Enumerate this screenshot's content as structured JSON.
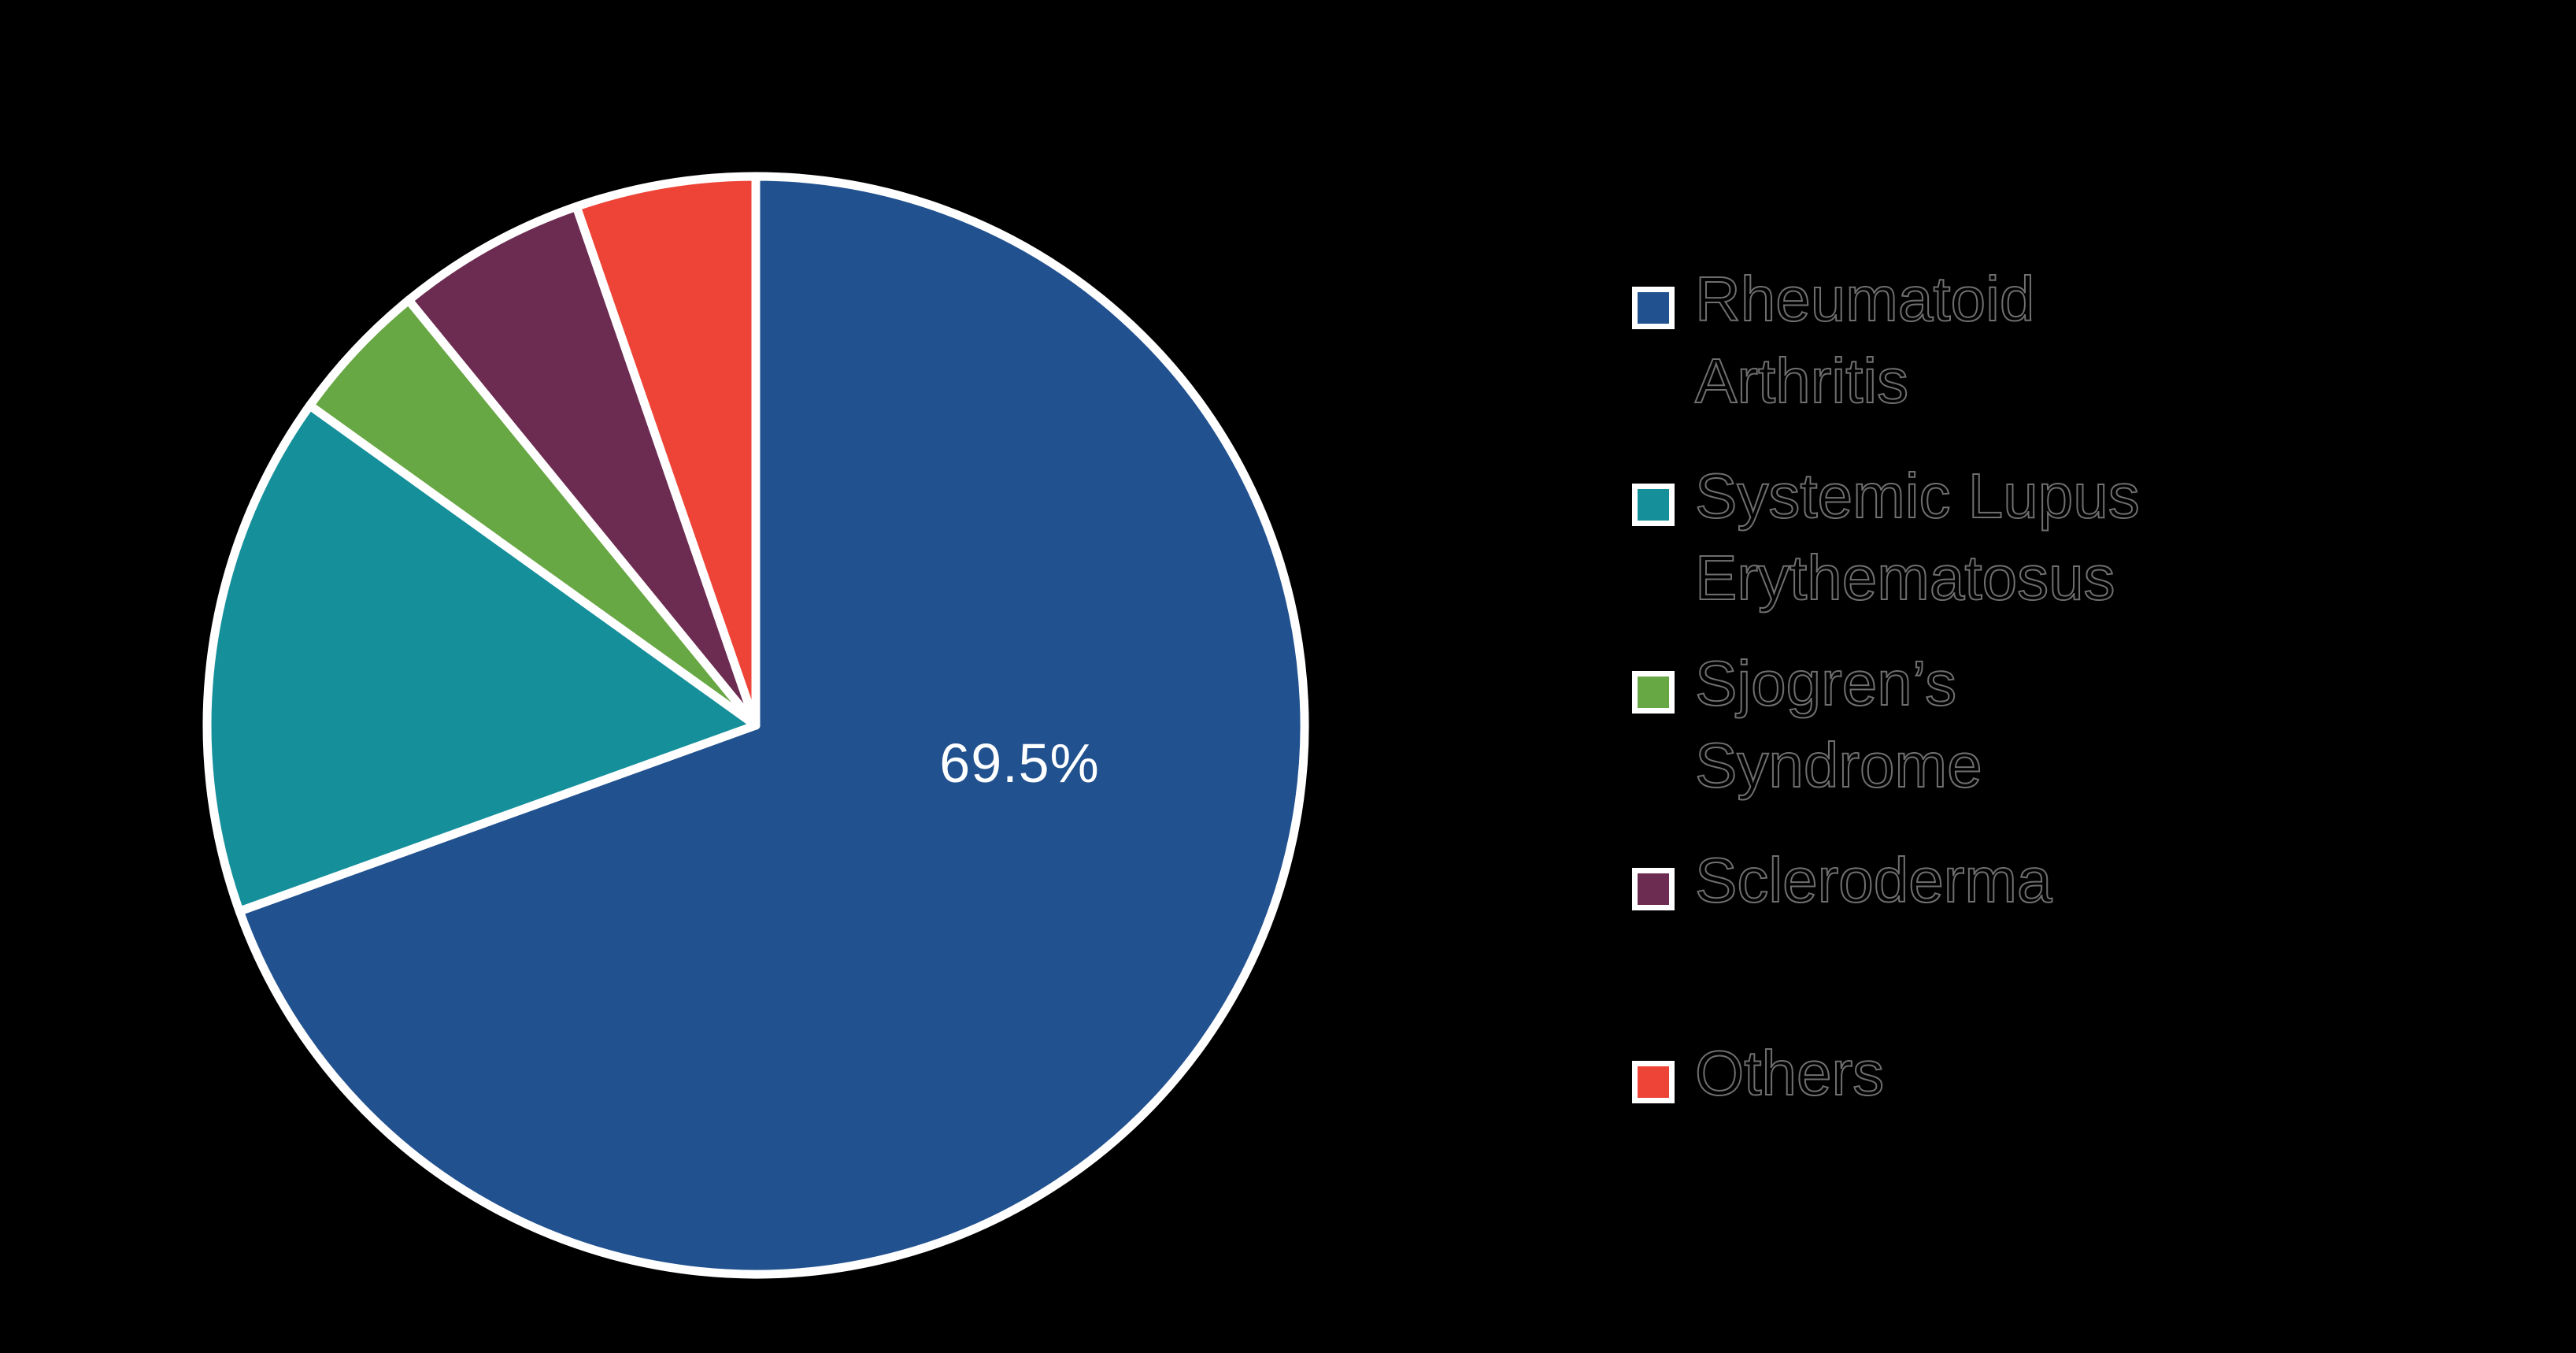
{
  "figure": {
    "background_color": "#000000"
  },
  "chart_data": {
    "type": "pie",
    "title": "",
    "labels": [
      "Rheumatoid Arthritis",
      "Systemic Lupus Erythematosus",
      "Sjogren’s Syndrome",
      "Scleroderma",
      "Others"
    ],
    "values": [
      69.5,
      15.4,
      4.2,
      5.6,
      5.3
    ],
    "colors": [
      "#21518F",
      "#15909B",
      "#67A744",
      "#6C2C51",
      "#EE4437"
    ],
    "slice_labels_shown": [
      "69.5%",
      "",
      "",
      "",
      ""
    ],
    "slice_label_color": "#ffffff",
    "start_angle": "12 o'clock",
    "direction": "clockwise",
    "wedge_edge_color": "#ffffff",
    "legend_position": "right"
  },
  "legend": {
    "text_color": "#000000",
    "items": [
      {
        "line1": "Rheumatoid",
        "line2": "Arthritis",
        "color": "#21518F"
      },
      {
        "line1": "Systemic Lupus",
        "line2": "Erythematosus",
        "color": "#15909B"
      },
      {
        "line1": "Sjogren’s",
        "line2": "Syndrome",
        "color": "#67A744"
      },
      {
        "line1": "Scleroderma",
        "line2": "",
        "color": "#6C2C51"
      },
      {
        "line1": "Others",
        "line2": "",
        "color": "#EE4437"
      }
    ]
  }
}
